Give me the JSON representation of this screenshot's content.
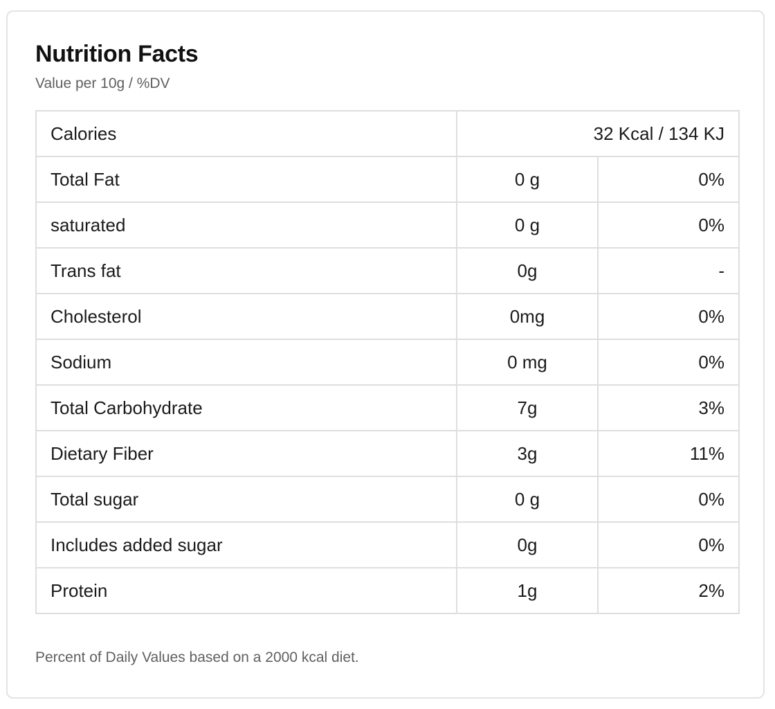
{
  "header": {
    "title": "Nutrition Facts",
    "subtitle": "Value per 10g / %DV"
  },
  "calories": {
    "label": "Calories",
    "value": "32 Kcal / 134 KJ"
  },
  "nutrients": [
    {
      "label": "Total Fat",
      "amount": "0 g",
      "dv": "0%"
    },
    {
      "label": "saturated",
      "amount": "0 g",
      "dv": "0%"
    },
    {
      "label": "Trans fat",
      "amount": "0g",
      "dv": "-"
    },
    {
      "label": "Cholesterol",
      "amount": "0mg",
      "dv": "0%"
    },
    {
      "label": "Sodium",
      "amount": "0 mg",
      "dv": "0%"
    },
    {
      "label": "Total Carbohydrate",
      "amount": "7g",
      "dv": "3%"
    },
    {
      "label": "Dietary Fiber",
      "amount": "3g",
      "dv": "11%"
    },
    {
      "label": "Total sugar",
      "amount": "0 g",
      "dv": "0%"
    },
    {
      "label": "Includes added sugar",
      "amount": "0g",
      "dv": "0%"
    },
    {
      "label": "Protein",
      "amount": "1g",
      "dv": "2%"
    }
  ],
  "footnote": "Percent of Daily Values based on a 2000 kcal diet."
}
